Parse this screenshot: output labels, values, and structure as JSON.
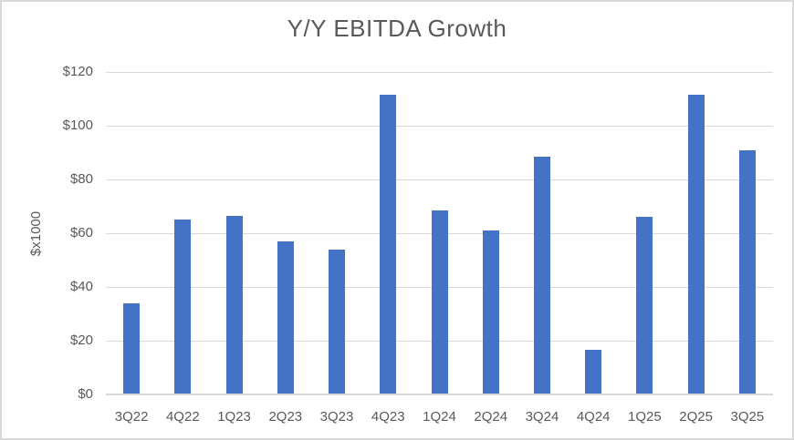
{
  "chart_data": {
    "type": "bar",
    "title": "Y/Y EBITDA Growth",
    "ylabel": "$x1000",
    "xlabel": "",
    "categories": [
      "3Q22",
      "4Q22",
      "1Q23",
      "2Q23",
      "3Q23",
      "4Q23",
      "1Q24",
      "2Q24",
      "3Q24",
      "4Q24",
      "1Q25",
      "2Q25",
      "3Q25"
    ],
    "values": [
      34,
      65,
      66.5,
      57,
      54,
      111.5,
      68.5,
      61,
      88.5,
      16.5,
      66,
      111.5,
      91
    ],
    "ylim": [
      0,
      120
    ],
    "ytick_values": [
      0,
      20,
      40,
      60,
      80,
      100,
      120
    ],
    "ytick_labels": [
      "$0",
      "$20",
      "$40",
      "$60",
      "$80",
      "$100",
      "$120"
    ],
    "grid": true,
    "legend_position": "none",
    "colors": {
      "bar": "#4472C4",
      "gridline": "#D9D9D9",
      "axis_line": "#D9D9D9",
      "tick_text": "#595959",
      "title_text": "#595959",
      "frame_border": "#D9D9D9",
      "background": "#FFFFFF"
    }
  }
}
